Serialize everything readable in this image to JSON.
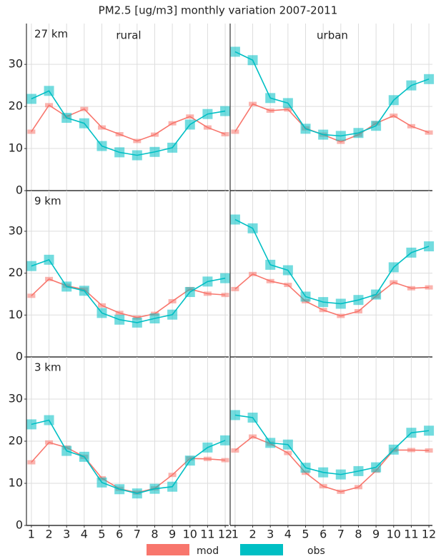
{
  "title": "PM2.5 [ug/m3] monthly variation 2007-2011",
  "chart_data": [
    {
      "type": "line",
      "label": "27 km",
      "facet": "rural",
      "x": [
        1,
        2,
        3,
        4,
        5,
        6,
        7,
        8,
        9,
        10,
        11,
        12
      ],
      "xlim": [
        0.72,
        12.2
      ],
      "ylim": [
        0,
        39.7
      ],
      "xticks": [
        1,
        2,
        3,
        4,
        5,
        6,
        7,
        8,
        9,
        10,
        11,
        12
      ],
      "yticks": [
        0,
        10,
        20,
        30
      ],
      "grid": true,
      "series": [
        {
          "name": "mod",
          "color": "#f8766d",
          "values": [
            14,
            20.3,
            17.6,
            19.4,
            15,
            13.4,
            11.8,
            13.3,
            16,
            17.6,
            15,
            13.4
          ]
        },
        {
          "name": "obs",
          "color": "#00bfc4",
          "values": [
            21.8,
            23.7,
            17.3,
            16,
            10.6,
            9.1,
            8.4,
            9.2,
            10.2,
            15.7,
            18.2,
            18.9
          ]
        }
      ]
    },
    {
      "type": "line",
      "facet": "urban",
      "x": [
        1,
        2,
        3,
        4,
        5,
        6,
        7,
        8,
        9,
        10,
        11,
        12
      ],
      "xlim": [
        0.72,
        12.2
      ],
      "ylim": [
        0,
        39.7
      ],
      "xticks": [
        1,
        2,
        3,
        4,
        5,
        6,
        7,
        8,
        9,
        10,
        11,
        12
      ],
      "yticks": [
        0,
        10,
        20,
        30
      ],
      "grid": true,
      "series": [
        {
          "name": "mod",
          "color": "#f8766d",
          "values": [
            14,
            20.6,
            19,
            19.3,
            14.8,
            13.3,
            11.6,
            13.3,
            16,
            17.8,
            15.3,
            13.8
          ]
        },
        {
          "name": "obs",
          "color": "#00bfc4",
          "values": [
            33,
            31,
            22,
            20.8,
            14.7,
            13.3,
            13,
            13.7,
            15.4,
            21.5,
            25,
            26.5
          ]
        }
      ]
    },
    {
      "type": "line",
      "label": "9 km",
      "x": [
        1,
        2,
        3,
        4,
        5,
        6,
        7,
        8,
        9,
        10,
        11,
        12
      ],
      "xlim": [
        0.72,
        12.2
      ],
      "ylim": [
        0,
        39.7
      ],
      "xticks": [
        1,
        2,
        3,
        4,
        5,
        6,
        7,
        8,
        9,
        10,
        11,
        12
      ],
      "yticks": [
        0,
        10,
        20,
        30
      ],
      "grid": true,
      "series": [
        {
          "name": "mod",
          "color": "#f8766d",
          "values": [
            14.6,
            18.6,
            17,
            16.1,
            12.3,
            10.5,
            9.4,
            10.3,
            13.3,
            16.2,
            15.1,
            14.8
          ]
        },
        {
          "name": "obs",
          "color": "#00bfc4",
          "values": [
            21.7,
            23.2,
            16.8,
            15.8,
            10.5,
            8.9,
            8.2,
            9.2,
            10.1,
            15.5,
            18,
            18.8
          ]
        }
      ]
    },
    {
      "type": "line",
      "x": [
        1,
        2,
        3,
        4,
        5,
        6,
        7,
        8,
        9,
        10,
        11,
        12
      ],
      "xlim": [
        0.72,
        12.2
      ],
      "ylim": [
        0,
        39.7
      ],
      "xticks": [
        1,
        2,
        3,
        4,
        5,
        6,
        7,
        8,
        9,
        10,
        11,
        12
      ],
      "yticks": [
        0,
        10,
        20,
        30
      ],
      "grid": true,
      "series": [
        {
          "name": "mod",
          "color": "#f8766d",
          "values": [
            16.2,
            19.8,
            18.1,
            17.2,
            13.3,
            11.2,
            9.8,
            10.9,
            14.5,
            17.8,
            16.4,
            16.6
          ]
        },
        {
          "name": "obs",
          "color": "#00bfc4",
          "values": [
            32.8,
            30.7,
            22,
            20.7,
            14.4,
            13.1,
            12.7,
            13.6,
            14.9,
            21.4,
            24.9,
            26.4
          ]
        }
      ]
    },
    {
      "type": "line",
      "label": "3 km",
      "x": [
        1,
        2,
        3,
        4,
        5,
        6,
        7,
        8,
        9,
        10,
        11,
        12
      ],
      "xlim": [
        0.72,
        12.2
      ],
      "ylim": [
        0,
        40
      ],
      "xticks": [
        1,
        2,
        3,
        4,
        5,
        6,
        7,
        8,
        9,
        10,
        11,
        12
      ],
      "yticks": [
        0,
        10,
        20,
        30
      ],
      "grid": true,
      "series": [
        {
          "name": "mod",
          "color": "#f8766d",
          "values": [
            15,
            19.7,
            18.5,
            16.3,
            11.2,
            8.7,
            7.8,
            8.8,
            12,
            15.9,
            15.8,
            15.5
          ]
        },
        {
          "name": "obs",
          "color": "#00bfc4",
          "values": [
            24,
            25,
            17.7,
            16.3,
            10.2,
            8.6,
            7.6,
            8.7,
            9.2,
            15.4,
            18.5,
            20.2
          ]
        }
      ]
    },
    {
      "type": "line",
      "x": [
        1,
        2,
        3,
        4,
        5,
        6,
        7,
        8,
        9,
        10,
        11,
        12
      ],
      "xlim": [
        0.72,
        12.2
      ],
      "ylim": [
        0,
        40
      ],
      "xticks": [
        1,
        2,
        3,
        4,
        5,
        6,
        7,
        8,
        9,
        10,
        11,
        12
      ],
      "yticks": [
        0,
        10,
        20,
        30
      ],
      "grid": true,
      "series": [
        {
          "name": "mod",
          "color": "#f8766d",
          "values": [
            17.8,
            21.1,
            19.4,
            17.2,
            12.5,
            9.3,
            8,
            9.1,
            13,
            17.9,
            17.9,
            17.8
          ]
        },
        {
          "name": "obs",
          "color": "#00bfc4",
          "values": [
            26.2,
            25.6,
            19.6,
            19.2,
            13.7,
            12.6,
            12.1,
            12.9,
            13.8,
            18,
            22,
            22.5
          ]
        }
      ]
    }
  ]
}
